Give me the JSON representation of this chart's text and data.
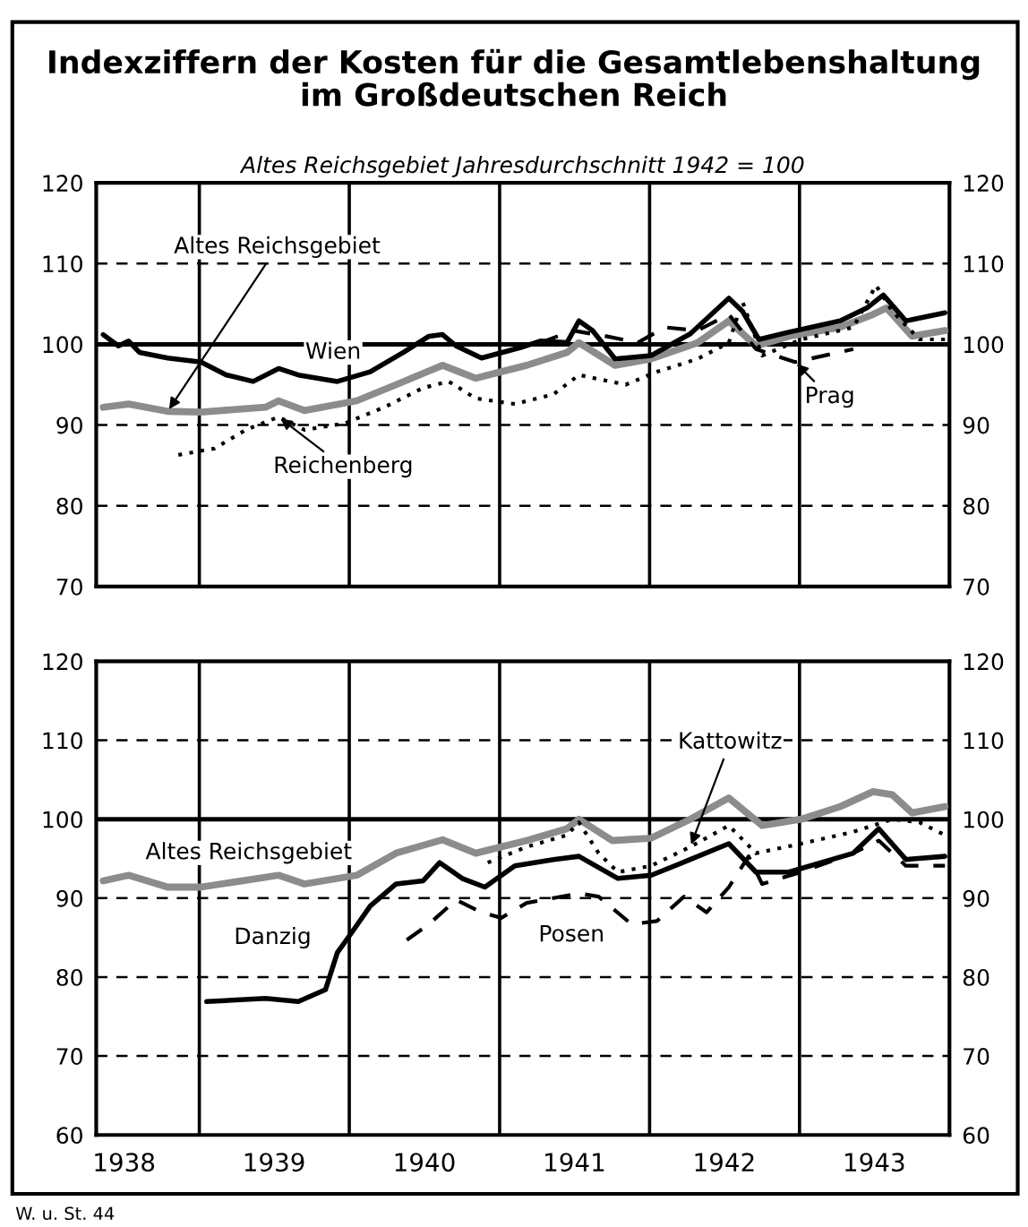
{
  "chart_data": [
    {
      "type": "line",
      "title": "Indexziffern der Kosten für die Gesamtlebenshaltung\nim Großdeutschen Reich",
      "subtitle": "Altes Reichsgebiet Jahresdurchschnitt 1942 = 100",
      "xlim": [
        "1938-04-25",
        "1944-01-01"
      ],
      "ylim": [
        70,
        120
      ],
      "yticks": [
        70,
        80,
        90,
        100,
        110,
        120
      ],
      "y2lim": [
        70,
        120
      ],
      "y2ticks": [
        70,
        80,
        90,
        100,
        110,
        120
      ],
      "grid": "y",
      "line_style": "dashed",
      "tick_labels": "y",
      "legend": false,
      "ref_lines": [
        {
          "axis": "y",
          "value": 100
        },
        {
          "axis": "x",
          "value": "1939-01-01"
        },
        {
          "axis": "x",
          "value": "1940-01-01"
        },
        {
          "axis": "x",
          "value": "1941-01-01"
        },
        {
          "axis": "x",
          "value": "1942-01-01"
        },
        {
          "axis": "x",
          "value": "1943-01-01"
        }
      ],
      "series": [
        {
          "color": "#8c8c8c",
          "line_style": "solid",
          "x": [
            "1938-05-12",
            "1938-07-13",
            "1938-10-16",
            "1939-01-05",
            "1939-06-11",
            "1939-07-13",
            "1939-09-14",
            "1940-01-19",
            "1940-04-24",
            "1940-08-15",
            "1940-11-04",
            "1941-03-08",
            "1941-06-14",
            "1941-07-13",
            "1941-10-09",
            "1942-01-05",
            "1942-04-28",
            "1942-07-13",
            "1942-09-17",
            "1942-12-06",
            "1943-04-10",
            "1943-06-29",
            "1943-08-01",
            "1943-10-02",
            "1943-12-21"
          ],
          "values": [
            92.2,
            92.6,
            91.7,
            91.6,
            92.2,
            93,
            91.8,
            93,
            95,
            97.4,
            95.8,
            97.4,
            99,
            100.2,
            97.4,
            98.2,
            100.2,
            102.9,
            99.8,
            101,
            102.1,
            103.7,
            104.5,
            101,
            101.7
          ]
        },
        {
          "color": "#000000",
          "line_style": "solid",
          "x": [
            "1938-05-12",
            "1938-06-18",
            "1938-07-13",
            "1938-08-08",
            "1938-10-16",
            "1939-01-05",
            "1939-03-08",
            "1939-05-12",
            "1939-07-13",
            "1939-08-30",
            "1939-12-03",
            "1940-02-21",
            "1940-05-12",
            "1940-07-13",
            "1940-08-15",
            "1940-09-17",
            "1940-11-18",
            "1941-02-21",
            "1941-04-10",
            "1941-06-14",
            "1941-07-13",
            "1941-08-15",
            "1941-10-09",
            "1942-01-05",
            "1942-04-10",
            "1942-07-13",
            "1942-08-15",
            "1942-09-24",
            "1942-12-06",
            "1943-04-10",
            "1943-06-14",
            "1943-07-24",
            "1943-09-17",
            "1943-12-21"
          ],
          "values": [
            101.2,
            99.8,
            100.4,
            99,
            98.3,
            97.8,
            96.2,
            95.4,
            97,
            96.2,
            95.4,
            96.6,
            99,
            101,
            101.2,
            99.8,
            98.3,
            99.6,
            100.4,
            100.2,
            102.9,
            101.7,
            98.2,
            98.6,
            101.3,
            105.7,
            104.1,
            100.6,
            101.5,
            102.9,
            104.5,
            106.1,
            102.9,
            103.9
          ]
        },
        {
          "color": "#000000",
          "line_style": "dashed",
          "x": [
            "1941-04-10",
            "1941-06-29",
            "1941-09-17",
            "1941-12-03",
            "1942-02-07",
            "1942-04-28",
            "1942-07-13",
            "1942-09-17",
            "1942-12-21",
            "1943-05-12"
          ],
          "values": [
            100.2,
            101.7,
            101,
            100.2,
            102.1,
            101.7,
            103.7,
            99.4,
            97.8,
            99.4
          ]
        },
        {
          "color": "#000000",
          "line_style": "dotted",
          "x": [
            "1938-11-11",
            "1939-02-07",
            "1939-04-24",
            "1939-07-13",
            "1939-09-14",
            "1939-12-21",
            "1940-03-26",
            "1940-06-29",
            "1940-08-30",
            "1940-11-04",
            "1941-02-07",
            "1941-05-12",
            "1941-07-13",
            "1941-11-04",
            "1942-01-19",
            "1942-04-28",
            "1942-07-13",
            "1942-08-15",
            "1942-10-02",
            "1943-01-05",
            "1943-05-12",
            "1943-07-06",
            "1943-08-15",
            "1943-10-20",
            "1943-12-21"
          ],
          "values": [
            86.3,
            87.1,
            89.4,
            91,
            89.4,
            90.2,
            92.2,
            94.6,
            95.4,
            93.3,
            92.6,
            93.8,
            96.2,
            95,
            96.6,
            98.2,
            100.2,
            105.3,
            98.6,
            100.6,
            102.1,
            107.3,
            104.1,
            100.6,
            100.6
          ]
        }
      ],
      "annotations": [
        {
          "text": "Altes Reichsgebiet",
          "x": "1938-10-16",
          "y": 91.7
        },
        {
          "text": "Wien",
          "x": "1939-08-30",
          "y": 96.2
        },
        {
          "text": "Reichenberg",
          "x": "1939-07-13",
          "y": 91
        },
        {
          "text": "Prag",
          "x": "1942-12-21",
          "y": 97.8
        }
      ]
    },
    {
      "type": "line",
      "xlim": [
        "1938-04-25",
        "1944-01-01"
      ],
      "xticks": [
        {
          "value": "1938-07-02",
          "label": "1938"
        },
        {
          "value": "1939-07-02",
          "label": "1939"
        },
        {
          "value": "1940-07-02",
          "label": "1940"
        },
        {
          "value": "1941-07-02",
          "label": "1941"
        },
        {
          "value": "1942-07-02",
          "label": "1942"
        },
        {
          "value": "1943-07-02",
          "label": "1943"
        }
      ],
      "ylim": [
        60,
        120
      ],
      "yticks": [
        60,
        70,
        80,
        90,
        100,
        110,
        120
      ],
      "y2lim": [
        60,
        120
      ],
      "y2ticks": [
        60,
        70,
        80,
        90,
        100,
        110,
        120
      ],
      "grid": "y",
      "line_style": "dashed",
      "legend": false,
      "ref_lines": [
        {
          "axis": "y",
          "value": 100
        },
        {
          "axis": "x",
          "value": "1939-01-01"
        },
        {
          "axis": "x",
          "value": "1940-01-01"
        },
        {
          "axis": "x",
          "value": "1941-01-01"
        },
        {
          "axis": "x",
          "value": "1942-01-01"
        },
        {
          "axis": "x",
          "value": "1943-01-01"
        }
      ],
      "series": [
        {
          "color": "#8c8c8c",
          "line_style": "solid",
          "x": [
            "1938-05-12",
            "1938-07-13",
            "1938-10-16",
            "1939-01-05",
            "1939-07-13",
            "1939-09-14",
            "1940-01-19",
            "1940-04-24",
            "1940-08-15",
            "1940-11-04",
            "1941-03-08",
            "1941-06-14",
            "1941-07-13",
            "1941-10-02",
            "1942-01-05",
            "1942-04-10",
            "1942-07-13",
            "1942-10-02",
            "1943-01-05",
            "1943-04-10",
            "1943-06-29",
            "1943-08-15",
            "1943-10-02",
            "1943-12-21"
          ],
          "values": [
            92.2,
            92.9,
            91.4,
            91.4,
            92.9,
            91.8,
            92.9,
            95.7,
            97.4,
            95.7,
            97.3,
            98.8,
            100,
            97.3,
            97.6,
            100,
            102.7,
            99.2,
            100,
            101.6,
            103.5,
            103.1,
            100.8,
            101.6
          ]
        },
        {
          "color": "#000000",
          "line_style": "dotted",
          "x": [
            "1940-12-03",
            "1941-03-08",
            "1941-06-14",
            "1941-07-13",
            "1941-08-30",
            "1941-10-16",
            "1942-01-05",
            "1942-04-10",
            "1942-07-13",
            "1942-09-17",
            "1943-01-05",
            "1943-05-12",
            "1943-08-15",
            "1943-10-20",
            "1943-12-21"
          ],
          "values": [
            94.5,
            96.5,
            98,
            99.6,
            95.7,
            93.3,
            94.1,
            96.5,
            99.2,
            95.7,
            96.9,
            98.4,
            100,
            99.6,
            98
          ]
        },
        {
          "color": "#000000",
          "line_style": "solid",
          "x": [
            "1939-01-19",
            "1939-06-11",
            "1939-08-30",
            "1939-11-04",
            "1939-12-03",
            "1940-01-05",
            "1940-02-21",
            "1940-04-24",
            "1940-06-29",
            "1940-08-08",
            "1940-10-02",
            "1940-11-26",
            "1941-02-07",
            "1941-05-12",
            "1941-07-13",
            "1941-10-16",
            "1942-01-05",
            "1942-04-10",
            "1942-07-13",
            "1942-09-17",
            "1942-12-06",
            "1943-05-12",
            "1943-07-13",
            "1943-09-17",
            "1943-12-21"
          ],
          "values": [
            76.9,
            77.3,
            76.9,
            78.4,
            83.1,
            85.5,
            89,
            91.8,
            92.2,
            94.5,
            92.5,
            91.4,
            94.1,
            94.9,
            95.3,
            92.5,
            92.9,
            94.9,
            96.9,
            93.3,
            93.3,
            95.7,
            98.8,
            94.9,
            95.3
          ]
        },
        {
          "color": "#000000",
          "line_style": "dashed",
          "x": [
            "1940-05-20",
            "1940-07-13",
            "1940-09-17",
            "1940-11-18",
            "1941-01-05",
            "1941-03-08",
            "1941-07-13",
            "1941-08-30",
            "1941-11-18",
            "1942-01-19",
            "1942-03-26",
            "1942-05-20",
            "1942-07-13",
            "1942-08-30",
            "1942-10-02",
            "1943-01-05",
            "1943-05-12",
            "1943-07-13",
            "1943-09-17",
            "1943-12-21"
          ],
          "values": [
            84.7,
            86.7,
            89.8,
            88.2,
            87.5,
            89.4,
            90.6,
            90.2,
            86.7,
            87.1,
            90.2,
            88.2,
            91.4,
            95.3,
            91.8,
            93.3,
            95.7,
            97.3,
            94.1,
            94.1
          ]
        }
      ],
      "annotations": [
        {
          "text": "Altes Reichsgebiet",
          "x": "1939-07-13",
          "y": 92.9
        },
        {
          "text": "Kattowitz",
          "x": "1942-04-10",
          "y": 96.5
        },
        {
          "text": "Danzig",
          "x": "1939-12-03",
          "y": 83.1
        },
        {
          "text": "Posen",
          "x": "1941-03-08",
          "y": 89.4
        },
        "W. u. St. 44"
      ]
    }
  ]
}
